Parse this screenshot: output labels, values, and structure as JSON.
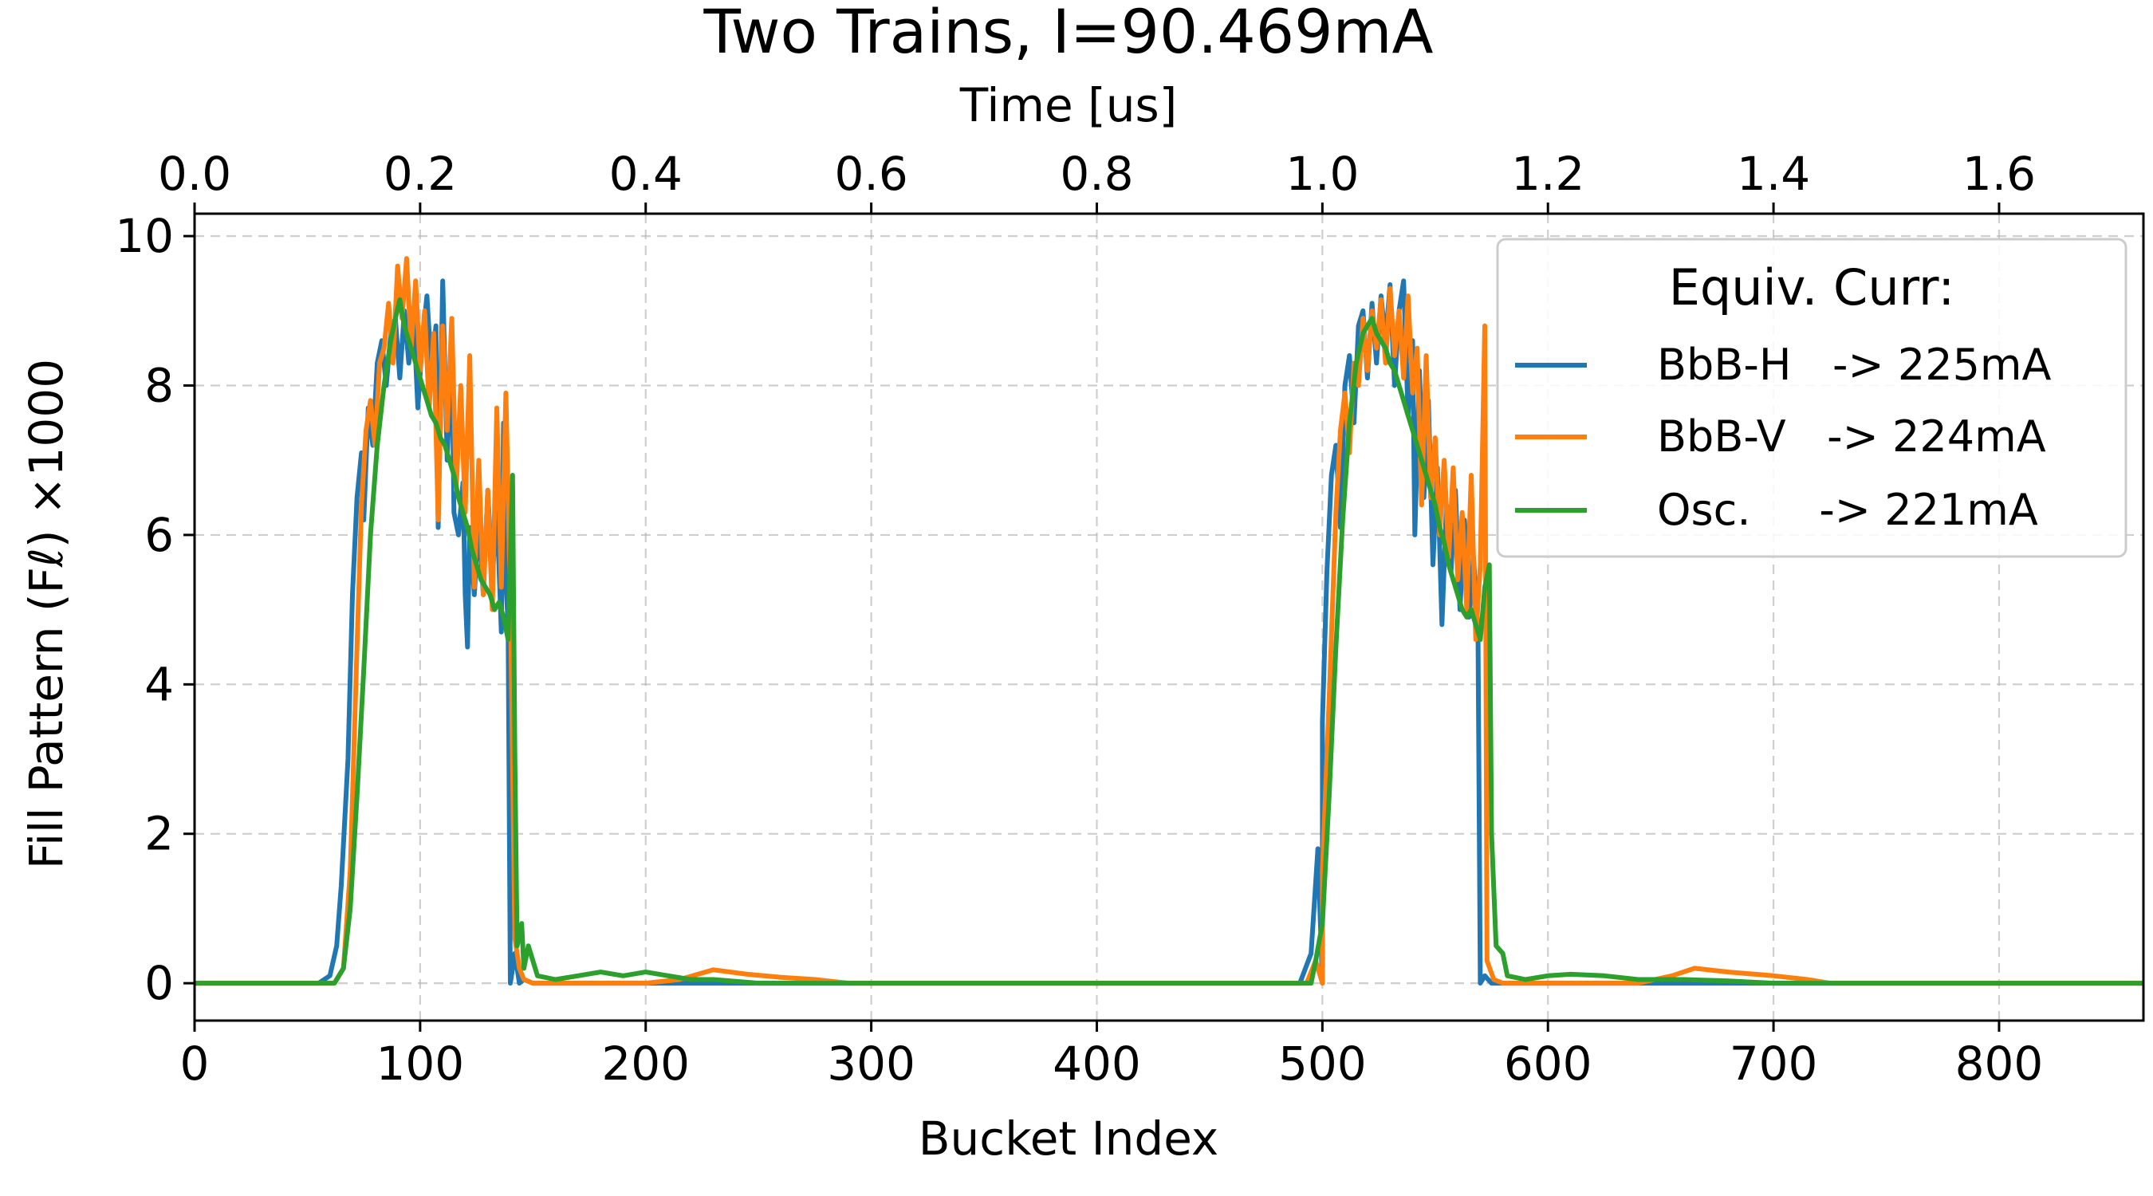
{
  "chart_data": {
    "type": "line",
    "title": "Two Trains, I=90.469mA",
    "xlabel": "Bucket Index",
    "ylabel": "Fill Pattern (Fℓ) ×1000",
    "top_xlabel": "Time [us]",
    "xlim": [
      0,
      864
    ],
    "ylim": [
      -0.5,
      10.3
    ],
    "top_xlim": [
      0,
      1.728
    ],
    "x_ticks": [
      "0",
      "100",
      "200",
      "300",
      "400",
      "500",
      "600",
      "700",
      "800"
    ],
    "y_ticks": [
      "0",
      "2",
      "4",
      "6",
      "8",
      "10"
    ],
    "top_x_ticks": [
      "0.0",
      "0.2",
      "0.4",
      "0.6",
      "0.8",
      "1.0",
      "1.2",
      "1.4",
      "1.6"
    ],
    "grid": true,
    "legend": {
      "title": "Equiv. Curr:",
      "placement": "top-right",
      "entries": [
        "BbB-H   -> 225mA",
        "BbB-V   -> 224mA",
        "Osc.     -> 221mA"
      ]
    },
    "series": [
      {
        "name": "BbB-H   -> 225mA",
        "color": "#1f77b4",
        "points": [
          [
            0,
            0
          ],
          [
            55,
            0
          ],
          [
            60,
            0.1
          ],
          [
            63,
            0.5
          ],
          [
            65,
            1.3
          ],
          [
            68,
            3.0
          ],
          [
            70,
            5.2
          ],
          [
            72,
            6.5
          ],
          [
            74,
            7.1
          ],
          [
            75,
            6.2
          ],
          [
            77,
            7.7
          ],
          [
            79,
            7.2
          ],
          [
            81,
            8.3
          ],
          [
            83,
            8.6
          ],
          [
            85,
            8.0
          ],
          [
            87,
            8.7
          ],
          [
            89,
            8.9
          ],
          [
            91,
            8.1
          ],
          [
            93,
            9.0
          ],
          [
            95,
            8.3
          ],
          [
            97,
            9.0
          ],
          [
            99,
            7.7
          ],
          [
            101,
            8.6
          ],
          [
            103,
            9.2
          ],
          [
            105,
            8.2
          ],
          [
            107,
            8.8
          ],
          [
            108,
            6.1
          ],
          [
            110,
            9.4
          ],
          [
            112,
            7.0
          ],
          [
            114,
            8.6
          ],
          [
            115,
            6.3
          ],
          [
            117,
            6.0
          ],
          [
            119,
            6.7
          ],
          [
            120,
            5.2
          ],
          [
            121,
            4.5
          ],
          [
            122,
            6.1
          ],
          [
            124,
            5.2
          ],
          [
            126,
            6.2
          ],
          [
            128,
            5.2
          ],
          [
            130,
            6.6
          ],
          [
            132,
            5.4
          ],
          [
            134,
            6.4
          ],
          [
            136,
            4.7
          ],
          [
            137,
            7.5
          ],
          [
            138,
            5.4
          ],
          [
            139,
            4.8
          ],
          [
            140,
            0.0
          ],
          [
            142,
            0.4
          ],
          [
            144,
            0.0
          ],
          [
            146,
            0.05
          ],
          [
            150,
            0.0
          ],
          [
            500,
            0
          ],
          [
            490,
            0
          ],
          [
            495,
            0.4
          ],
          [
            498,
            1.8
          ],
          [
            500,
            3.5
          ],
          [
            502,
            5.5
          ],
          [
            504,
            6.8
          ],
          [
            506,
            7.2
          ],
          [
            508,
            6.1
          ],
          [
            510,
            8.0
          ],
          [
            512,
            8.4
          ],
          [
            514,
            7.5
          ],
          [
            516,
            8.8
          ],
          [
            518,
            9.0
          ],
          [
            520,
            8.1
          ],
          [
            522,
            9.1
          ],
          [
            524,
            8.3
          ],
          [
            526,
            9.2
          ],
          [
            528,
            8.6
          ],
          [
            530,
            9.35
          ],
          [
            532,
            8.0
          ],
          [
            534,
            9.0
          ],
          [
            536,
            9.4
          ],
          [
            538,
            7.6
          ],
          [
            540,
            8.6
          ],
          [
            541,
            6.0
          ],
          [
            543,
            8.2
          ],
          [
            545,
            6.5
          ],
          [
            547,
            7.8
          ],
          [
            549,
            5.6
          ],
          [
            551,
            6.9
          ],
          [
            553,
            4.8
          ],
          [
            555,
            6.4
          ],
          [
            557,
            5.5
          ],
          [
            559,
            6.6
          ],
          [
            561,
            5.0
          ],
          [
            563,
            6.2
          ],
          [
            565,
            4.9
          ],
          [
            567,
            5.7
          ],
          [
            569,
            4.7
          ],
          [
            570,
            0.0
          ],
          [
            572,
            0.1
          ],
          [
            575,
            0.0
          ],
          [
            600,
            0.0
          ],
          [
            864,
            0.0
          ]
        ]
      },
      {
        "name": "BbB-V   -> 224mA",
        "color": "#ff7f0e",
        "points": [
          [
            0,
            0
          ],
          [
            62,
            0
          ],
          [
            66,
            0.2
          ],
          [
            69,
            1.5
          ],
          [
            72,
            4.5
          ],
          [
            74,
            6.4
          ],
          [
            76,
            7.4
          ],
          [
            78,
            7.8
          ],
          [
            80,
            7.2
          ],
          [
            82,
            8.3
          ],
          [
            84,
            8.5
          ],
          [
            86,
            9.1
          ],
          [
            88,
            8.3
          ],
          [
            90,
            9.6
          ],
          [
            92,
            8.9
          ],
          [
            94,
            9.7
          ],
          [
            96,
            8.5
          ],
          [
            98,
            9.4
          ],
          [
            100,
            8.2
          ],
          [
            102,
            9.0
          ],
          [
            104,
            7.7
          ],
          [
            106,
            8.7
          ],
          [
            108,
            6.2
          ],
          [
            110,
            8.8
          ],
          [
            112,
            7.4
          ],
          [
            114,
            8.9
          ],
          [
            116,
            6.6
          ],
          [
            118,
            8.0
          ],
          [
            120,
            6.3
          ],
          [
            122,
            8.4
          ],
          [
            124,
            5.3
          ],
          [
            126,
            7.0
          ],
          [
            128,
            5.2
          ],
          [
            130,
            6.6
          ],
          [
            132,
            5.0
          ],
          [
            134,
            7.7
          ],
          [
            136,
            5.3
          ],
          [
            138,
            7.9
          ],
          [
            140,
            5.2
          ],
          [
            142,
            0.6
          ],
          [
            144,
            0.2
          ],
          [
            146,
            0.05
          ],
          [
            150,
            0.0
          ],
          [
            200,
            0.0
          ],
          [
            215,
            0.05
          ],
          [
            230,
            0.18
          ],
          [
            245,
            0.12
          ],
          [
            260,
            0.08
          ],
          [
            275,
            0.05
          ],
          [
            290,
            0.0
          ],
          [
            500,
            0
          ],
          [
            493,
            0
          ],
          [
            497,
            0.3
          ],
          [
            500,
            1.5
          ],
          [
            503,
            3.8
          ],
          [
            506,
            6.3
          ],
          [
            508,
            7.4
          ],
          [
            510,
            7.9
          ],
          [
            512,
            7.1
          ],
          [
            514,
            8.3
          ],
          [
            516,
            8.0
          ],
          [
            518,
            8.9
          ],
          [
            520,
            8.2
          ],
          [
            522,
            9.0
          ],
          [
            524,
            8.5
          ],
          [
            526,
            9.15
          ],
          [
            528,
            8.3
          ],
          [
            530,
            9.3
          ],
          [
            532,
            8.4
          ],
          [
            534,
            9.0
          ],
          [
            536,
            8.1
          ],
          [
            538,
            9.2
          ],
          [
            540,
            7.9
          ],
          [
            542,
            8.5
          ],
          [
            544,
            6.4
          ],
          [
            546,
            8.4
          ],
          [
            548,
            6.5
          ],
          [
            550,
            7.3
          ],
          [
            552,
            6.0
          ],
          [
            554,
            7.0
          ],
          [
            556,
            5.7
          ],
          [
            558,
            6.9
          ],
          [
            560,
            5.4
          ],
          [
            562,
            6.3
          ],
          [
            564,
            5.0
          ],
          [
            566,
            6.8
          ],
          [
            568,
            4.6
          ],
          [
            570,
            5.6
          ],
          [
            572,
            8.8
          ],
          [
            573,
            0.3
          ],
          [
            576,
            0.05
          ],
          [
            580,
            0.0
          ],
          [
            640,
            0.0
          ],
          [
            655,
            0.1
          ],
          [
            665,
            0.2
          ],
          [
            680,
            0.15
          ],
          [
            700,
            0.1
          ],
          [
            715,
            0.05
          ],
          [
            725,
            0.0
          ],
          [
            864,
            0.0
          ]
        ]
      },
      {
        "name": "Osc.     -> 221mA",
        "color": "#2ca02c",
        "points": [
          [
            0,
            0
          ],
          [
            62,
            0
          ],
          [
            66,
            0.2
          ],
          [
            69,
            1.0
          ],
          [
            72,
            2.5
          ],
          [
            75,
            4.2
          ],
          [
            78,
            6.0
          ],
          [
            81,
            7.2
          ],
          [
            84,
            8.0
          ],
          [
            87,
            8.6
          ],
          [
            89,
            8.9
          ],
          [
            91,
            9.15
          ],
          [
            93,
            8.8
          ],
          [
            95,
            8.6
          ],
          [
            97,
            8.4
          ],
          [
            99,
            8.2
          ],
          [
            101,
            8.0
          ],
          [
            103,
            7.8
          ],
          [
            105,
            7.6
          ],
          [
            107,
            7.5
          ],
          [
            109,
            7.3
          ],
          [
            111,
            7.2
          ],
          [
            113,
            7.0
          ],
          [
            115,
            6.8
          ],
          [
            117,
            6.5
          ],
          [
            119,
            6.3
          ],
          [
            121,
            6.1
          ],
          [
            123,
            5.8
          ],
          [
            125,
            5.6
          ],
          [
            127,
            5.4
          ],
          [
            129,
            5.3
          ],
          [
            131,
            5.2
          ],
          [
            133,
            5.0
          ],
          [
            135,
            5.1
          ],
          [
            137,
            4.9
          ],
          [
            139,
            4.6
          ],
          [
            141,
            6.8
          ],
          [
            142,
            3.0
          ],
          [
            143,
            0.5
          ],
          [
            145,
            0.8
          ],
          [
            146,
            0.2
          ],
          [
            148,
            0.5
          ],
          [
            152,
            0.1
          ],
          [
            160,
            0.05
          ],
          [
            170,
            0.1
          ],
          [
            180,
            0.15
          ],
          [
            190,
            0.1
          ],
          [
            200,
            0.15
          ],
          [
            210,
            0.1
          ],
          [
            220,
            0.05
          ],
          [
            230,
            0.05
          ],
          [
            250,
            0.0
          ],
          [
            495,
            0
          ],
          [
            497,
            0.3
          ],
          [
            500,
            0.8
          ],
          [
            503,
            2.5
          ],
          [
            506,
            4.5
          ],
          [
            509,
            6.2
          ],
          [
            512,
            7.5
          ],
          [
            515,
            8.3
          ],
          [
            518,
            8.7
          ],
          [
            520,
            8.8
          ],
          [
            522,
            8.9
          ],
          [
            524,
            8.7
          ],
          [
            526,
            8.6
          ],
          [
            528,
            8.5
          ],
          [
            530,
            8.3
          ],
          [
            532,
            8.2
          ],
          [
            534,
            8.0
          ],
          [
            536,
            7.8
          ],
          [
            538,
            7.6
          ],
          [
            540,
            7.4
          ],
          [
            542,
            7.2
          ],
          [
            544,
            7.0
          ],
          [
            546,
            6.8
          ],
          [
            548,
            6.6
          ],
          [
            550,
            6.4
          ],
          [
            552,
            6.1
          ],
          [
            554,
            5.9
          ],
          [
            556,
            5.6
          ],
          [
            558,
            5.4
          ],
          [
            560,
            5.2
          ],
          [
            562,
            5.0
          ],
          [
            564,
            4.9
          ],
          [
            566,
            5.0
          ],
          [
            568,
            4.8
          ],
          [
            570,
            4.6
          ],
          [
            572,
            5.3
          ],
          [
            574,
            5.6
          ],
          [
            575,
            2.0
          ],
          [
            577,
            0.5
          ],
          [
            580,
            0.4
          ],
          [
            582,
            0.1
          ],
          [
            590,
            0.05
          ],
          [
            600,
            0.1
          ],
          [
            610,
            0.12
          ],
          [
            625,
            0.1
          ],
          [
            640,
            0.05
          ],
          [
            660,
            0.05
          ],
          [
            680,
            0.03
          ],
          [
            700,
            0.0
          ],
          [
            864,
            0.0
          ]
        ]
      }
    ]
  }
}
